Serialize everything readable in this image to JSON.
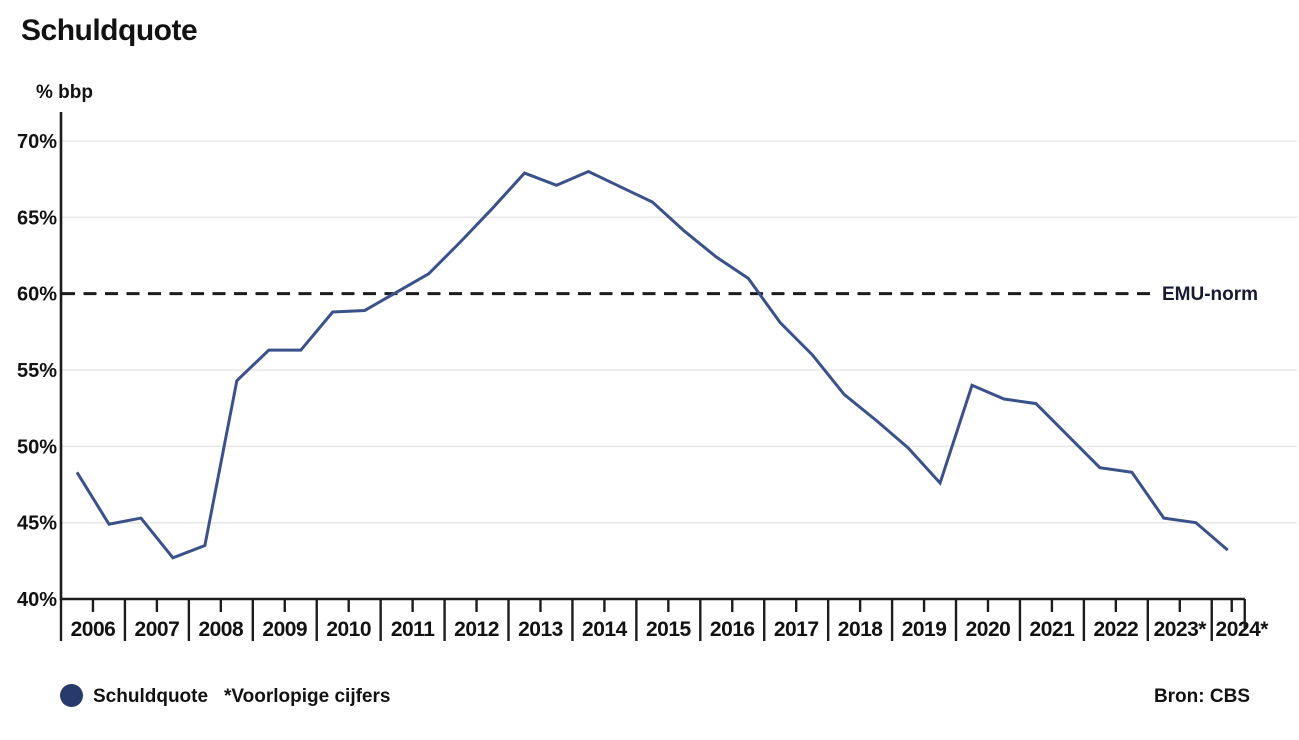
{
  "title": "Schuldquote",
  "chart_data": {
    "type": "line",
    "title": "Schuldquote",
    "ylabel": "% bbp",
    "ylim": [
      40,
      70
    ],
    "grid": "horizontal",
    "yticks": [
      {
        "value": 70,
        "label": "70%"
      },
      {
        "value": 65,
        "label": "65%"
      },
      {
        "value": 60,
        "label": "60%"
      },
      {
        "value": 55,
        "label": "55%"
      },
      {
        "value": 50,
        "label": "50%"
      },
      {
        "value": 45,
        "label": "45%"
      },
      {
        "value": 40,
        "label": "40%"
      }
    ],
    "x_year_labels": [
      "2006",
      "2007",
      "2008",
      "2009",
      "2010",
      "2011",
      "2012",
      "2013",
      "2014",
      "2015",
      "2016",
      "2017",
      "2018",
      "2019",
      "2020",
      "2021",
      "2022",
      "2023*",
      "2024*"
    ],
    "frequency": "half-yearly",
    "series": [
      {
        "name": "Schuldquote",
        "points": [
          {
            "period": "2006-H1",
            "value": 48.3
          },
          {
            "period": "2006-H2",
            "value": 44.9
          },
          {
            "period": "2007-H1",
            "value": 45.3
          },
          {
            "period": "2007-H2",
            "value": 42.7
          },
          {
            "period": "2008-H1",
            "value": 43.5
          },
          {
            "period": "2008-H2",
            "value": 54.3
          },
          {
            "period": "2009-H1",
            "value": 56.3
          },
          {
            "period": "2009-H2",
            "value": 56.3
          },
          {
            "period": "2010-H1",
            "value": 58.8
          },
          {
            "period": "2010-H2",
            "value": 58.9
          },
          {
            "period": "2011-H1",
            "value": 60.1
          },
          {
            "period": "2011-H2",
            "value": 61.3
          },
          {
            "period": "2012-H1",
            "value": 63.4
          },
          {
            "period": "2012-H2",
            "value": 65.6
          },
          {
            "period": "2013-H1",
            "value": 67.9
          },
          {
            "period": "2013-H2",
            "value": 67.1
          },
          {
            "period": "2014-H1",
            "value": 68.0
          },
          {
            "period": "2014-H2",
            "value": 67.0
          },
          {
            "period": "2015-H1",
            "value": 66.0
          },
          {
            "period": "2015-H2",
            "value": 64.1
          },
          {
            "period": "2016-H1",
            "value": 62.4
          },
          {
            "period": "2016-H2",
            "value": 61.0
          },
          {
            "period": "2017-H1",
            "value": 58.1
          },
          {
            "period": "2017-H2",
            "value": 56.0
          },
          {
            "period": "2018-H1",
            "value": 53.4
          },
          {
            "period": "2018-H2",
            "value": 51.7
          },
          {
            "period": "2019-H1",
            "value": 49.9
          },
          {
            "period": "2019-H2",
            "value": 47.6
          },
          {
            "period": "2020-H1",
            "value": 54.0
          },
          {
            "period": "2020-H2",
            "value": 53.1
          },
          {
            "period": "2021-H1",
            "value": 52.8
          },
          {
            "period": "2021-H2",
            "value": 50.7
          },
          {
            "period": "2022-H1",
            "value": 48.6
          },
          {
            "period": "2022-H2",
            "value": 48.3
          },
          {
            "period": "2023-H1",
            "value": 45.3
          },
          {
            "period": "2023-H2",
            "value": 45.0
          },
          {
            "period": "2024-H1",
            "value": 43.2
          }
        ]
      }
    ],
    "reference_line": {
      "value": 60,
      "label": "EMU-norm"
    },
    "legend": {
      "series": "Schuldquote",
      "note": "*Voorlopige cijfers",
      "position": "bottom-left"
    },
    "source": "Bron: CBS",
    "colors": {
      "line": "#3a5289",
      "legend_dot": "#28396b",
      "grid": "#e8e8e8",
      "axis": "#1c1c1c",
      "text": "#121212"
    }
  }
}
